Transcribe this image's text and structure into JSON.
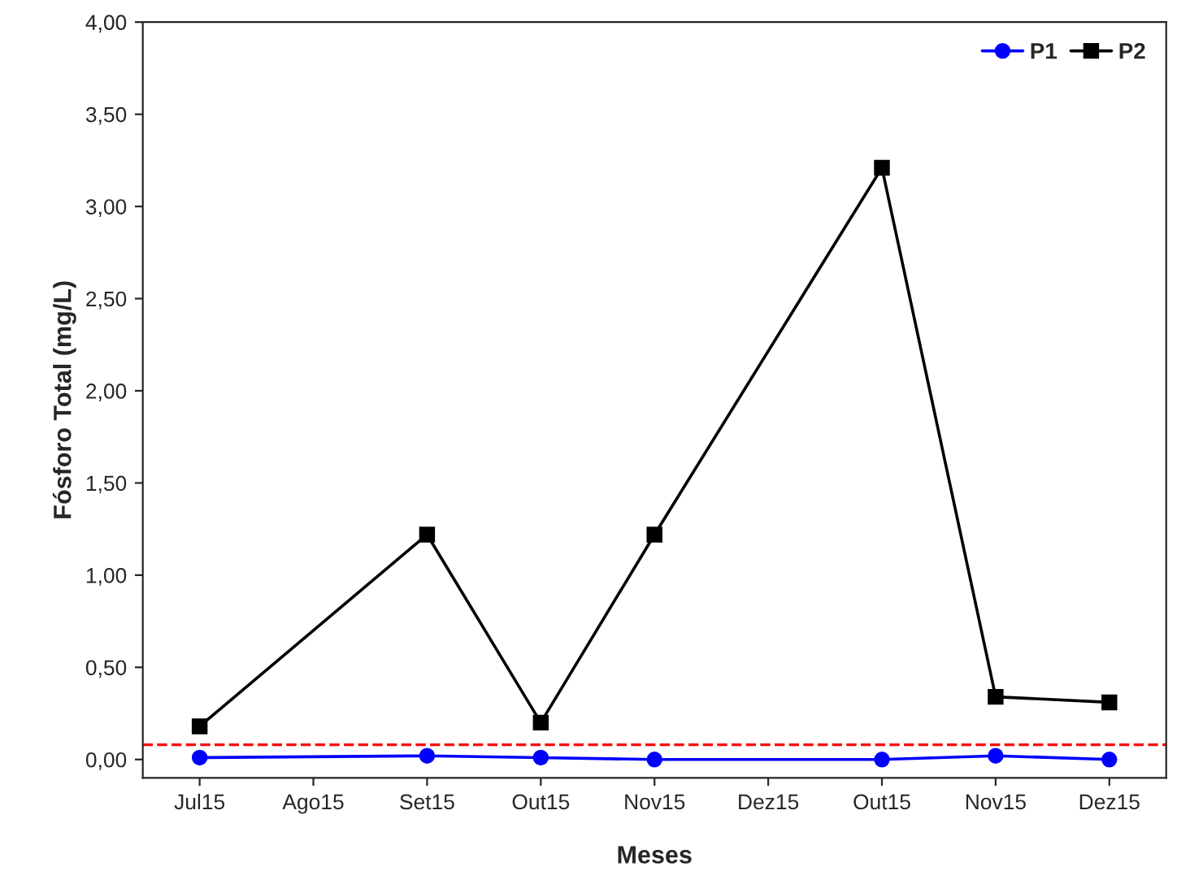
{
  "chart_data": {
    "type": "line",
    "xlabel": "Meses",
    "ylabel": "Fósforo Total (mg/L)",
    "categories": [
      "Jul15",
      "Ago15",
      "Set15",
      "Out15",
      "Nov15",
      "Dez15",
      "Out15",
      "Nov15",
      "Dez15"
    ],
    "series": [
      {
        "name": "P1",
        "color": "#0000ff",
        "marker": "circle",
        "values": [
          0.01,
          null,
          0.02,
          0.01,
          0.0,
          null,
          0.0,
          0.02,
          0.0
        ]
      },
      {
        "name": "P2",
        "color": "#000000",
        "marker": "square",
        "values": [
          0.18,
          null,
          1.22,
          0.2,
          1.22,
          null,
          3.21,
          0.34,
          0.31
        ]
      }
    ],
    "ylim": [
      -0.1,
      4
    ],
    "yticks": [
      {
        "value": 0,
        "label": "0,00"
      },
      {
        "value": 0.5,
        "label": "0,50"
      },
      {
        "value": 1,
        "label": "1,00"
      },
      {
        "value": 1.5,
        "label": "1,50"
      },
      {
        "value": 2,
        "label": "2,00"
      },
      {
        "value": 2.5,
        "label": "2,50"
      },
      {
        "value": 3,
        "label": "3,00"
      },
      {
        "value": 3.5,
        "label": "3,50"
      },
      {
        "value": 4,
        "label": "4,00"
      }
    ],
    "ref_lines": [
      {
        "axis": "y",
        "value": 0.08,
        "color": "#ff0000",
        "line_style": "dashed"
      }
    ],
    "legend": "top right",
    "grid": false,
    "line_style": "solid"
  }
}
